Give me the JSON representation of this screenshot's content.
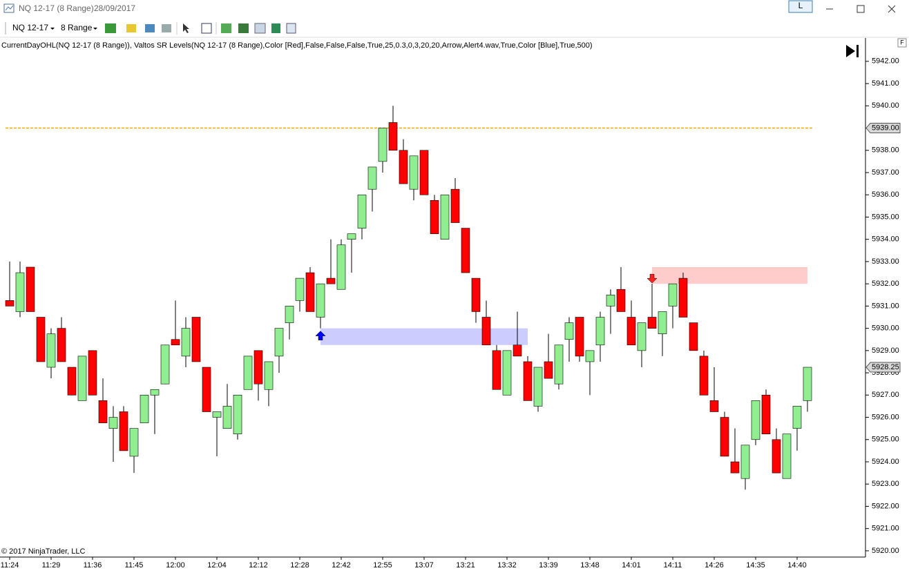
{
  "window": {
    "title": "NQ 12-17 (8 Range)",
    "date": "28/09/2017",
    "button": "L"
  },
  "toolbar": {
    "instrument": "NQ 12-17",
    "period": "8 Range"
  },
  "chart_data": {
    "type": "candlestick",
    "indicators": "CurrentDayOHL(NQ 12-17 (8 Range)), Valtos SR Levels(NQ 12-17 (8 Range),Color [Red],False,False,False,True,25,0.3,0,3,20,20,Arrow,Alert4.wav,True,Color [Blue],True,500)",
    "copyright": "© 2017 NinjaTrader, LLC",
    "axis_flag": "F",
    "up_color": "#90ee90",
    "down_color": "#ff0000",
    "categories": [
      "11:24",
      null,
      null,
      null,
      "11:29",
      null,
      null,
      null,
      "11:36",
      null,
      null,
      null,
      "11:45",
      null,
      null,
      null,
      "12:00",
      null,
      null,
      null,
      "12:04",
      null,
      null,
      null,
      "12:12",
      null,
      null,
      null,
      "12:28",
      null,
      null,
      null,
      "12:42",
      null,
      null,
      null,
      "12:55",
      null,
      null,
      null,
      "13:07",
      null,
      null,
      null,
      "13:21",
      null,
      null,
      null,
      "13:32",
      null,
      null,
      null,
      "13:39",
      null,
      null,
      null,
      "13:48",
      null,
      null,
      null,
      "14:01",
      null,
      null,
      null,
      "14:11",
      null,
      null,
      null,
      "14:26",
      null,
      null,
      null,
      "14:35",
      null,
      null,
      null,
      "14:40",
      null
    ],
    "open": [
      5931.25,
      5930.75,
      5932.75,
      5930.5,
      5928.25,
      5930,
      5928.25,
      5926.75,
      5929,
      5926.75,
      5925.5,
      5926.25,
      5924.25,
      5925.75,
      5927,
      5927.5,
      5929.5,
      5928.75,
      5930.5,
      5928.25,
      5926,
      5925.5,
      5925.25,
      5927.25,
      5929,
      5927.25,
      5928.75,
      5930.25,
      5931.25,
      5932.5,
      5930.5,
      5932.25,
      5931.75,
      5934,
      5934.5,
      5936.25,
      5937.5,
      5939.25,
      5938,
      5936.25,
      5938,
      5935.75,
      5934,
      5936.25,
      5934.5,
      5932.25,
      5930.5,
      5929,
      5927,
      5929.25,
      5928.5,
      5926.5,
      5928.5,
      5927.5,
      5929.5,
      5930.5,
      5928.5,
      5929.25,
      5931,
      5931.75,
      5930.5,
      5929,
      5930.5,
      5929.75,
      5931,
      5932.25,
      5930.25,
      5928.75,
      5926.75,
      5926,
      5924,
      5923.25,
      5925,
      5927,
      5925,
      5923.25,
      5925.5,
      5926.75
    ],
    "high": [
      5933,
      5933,
      5932.75,
      5930.5,
      5930,
      5930.5,
      5928.25,
      5928.75,
      5929,
      5927.75,
      5926.5,
      5926.5,
      5925.5,
      5927,
      5927.25,
      5929.25,
      5931.25,
      5930.5,
      5930.5,
      5928.25,
      5926.25,
      5927.5,
      5927,
      5928.75,
      5929,
      5928.5,
      5930,
      5931,
      5932.25,
      5932.75,
      5932,
      5934,
      5934,
      5934.25,
      5936,
      5937.25,
      5939,
      5940,
      5938.5,
      5937.75,
      5938,
      5936,
      5936,
      5936.75,
      5934.5,
      5932.25,
      5931.25,
      5929.25,
      5929,
      5930.75,
      5928.75,
      5928.25,
      5929.75,
      5929.25,
      5930.5,
      5930.5,
      5929,
      5930.75,
      5931.75,
      5932.75,
      5931.25,
      5930.25,
      5932,
      5930.75,
      5932,
      5932.5,
      5930.25,
      5929,
      5928.25,
      5926.25,
      5925.5,
      5924.75,
      5926.75,
      5927.25,
      5925.5,
      5925.25,
      5926.5,
      5928.25
    ],
    "low": [
      5931,
      5930.5,
      5930.75,
      5928.5,
      5927.75,
      5928.5,
      5927,
      5926.75,
      5927,
      5925.75,
      5924,
      5924.5,
      5923.5,
      5925.75,
      5925.25,
      5927.5,
      5929.25,
      5928.25,
      5928.5,
      5926.25,
      5924.25,
      5925.5,
      5925,
      5927.25,
      5926.75,
      5926.5,
      5928,
      5929.5,
      5930.75,
      5930.75,
      5930,
      5932,
      5931.75,
      5932.5,
      5934,
      5935.25,
      5937,
      5938,
      5936.5,
      5935.75,
      5936,
      5934.25,
      5934,
      5934.75,
      5932.5,
      5930.25,
      5929.25,
      5927.25,
      5927,
      5928.75,
      5926.75,
      5926.25,
      5927.75,
      5927.25,
      5928.5,
      5928.5,
      5927,
      5928.5,
      5929.75,
      5930.75,
      5929.25,
      5928.25,
      5930,
      5928.75,
      5930,
      5930.5,
      5929,
      5927,
      5926.25,
      5924.25,
      5923.5,
      5922.75,
      5924.75,
      5925.25,
      5923.5,
      5923.25,
      5924.5,
      5926.25
    ],
    "close": [
      5931,
      5932.5,
      5930.75,
      5928.5,
      5929.75,
      5928.5,
      5927,
      5928.75,
      5927,
      5925.75,
      5926,
      5924.5,
      5925.5,
      5927,
      5927.25,
      5929.25,
      5929.25,
      5930,
      5928.5,
      5926.25,
      5926.25,
      5926.5,
      5927,
      5928.75,
      5927.5,
      5928.5,
      5930,
      5931,
      5932.25,
      5930.75,
      5932,
      5932,
      5933.75,
      5934.25,
      5936,
      5937.25,
      5939,
      5938,
      5936.5,
      5937.75,
      5936,
      5934.25,
      5936,
      5934.75,
      5932.5,
      5930.75,
      5929.25,
      5927.25,
      5929,
      5928.75,
      5926.75,
      5928.25,
      5927.75,
      5929.25,
      5930.25,
      5928.75,
      5929,
      5930.5,
      5931.5,
      5930.75,
      5929.25,
      5930.25,
      5930,
      5930.75,
      5932,
      5930.5,
      5929,
      5927,
      5926.25,
      5924.25,
      5923.5,
      5924.75,
      5926.75,
      5925.25,
      5923.5,
      5925.25,
      5926.5,
      5928.25
    ],
    "ylim": [
      5919.75,
      5943.05
    ],
    "yticks": [
      {
        "value": 5920,
        "label": "5920.00"
      },
      {
        "value": 5921,
        "label": "5921.00"
      },
      {
        "value": 5922,
        "label": "5922.00"
      },
      {
        "value": 5923,
        "label": "5923.00"
      },
      {
        "value": 5924,
        "label": "5924.00"
      },
      {
        "value": 5925,
        "label": "5925.00"
      },
      {
        "value": 5926,
        "label": "5926.00"
      },
      {
        "value": 5927,
        "label": "5927.00"
      },
      {
        "value": 5928,
        "label": "5928.00"
      },
      {
        "value": 5929,
        "label": "5929.00"
      },
      {
        "value": 5930,
        "label": "5930.00"
      },
      {
        "value": 5931,
        "label": "5931.00"
      },
      {
        "value": 5932,
        "label": "5932.00"
      },
      {
        "value": 5933,
        "label": "5933.00"
      },
      {
        "value": 5934,
        "label": "5934.00"
      },
      {
        "value": 5935,
        "label": "5935.00"
      },
      {
        "value": 5936,
        "label": "5936.00"
      },
      {
        "value": 5937,
        "label": "5937.00"
      },
      {
        "value": 5938,
        "label": "5938.00"
      },
      {
        "value": 5939,
        "label": "5939.00"
      },
      {
        "value": 5940,
        "label": "5940.00"
      },
      {
        "value": 5941,
        "label": "5941.00"
      },
      {
        "value": 5942,
        "label": "5942.00"
      }
    ],
    "price_markers": [
      {
        "value": 5939,
        "label": "5939.00",
        "color": "#ffa500"
      },
      {
        "value": 5928.25,
        "label": "5928.25"
      }
    ],
    "zones": [
      {
        "start_bar": 30,
        "end_bar": 50,
        "low": 5929.25,
        "high": 5930,
        "color": "#ccccff"
      },
      {
        "start_bar": 62,
        "end_bar": 77,
        "low": 5932,
        "high": 5932.75,
        "color": "#ffcccc"
      }
    ],
    "signals": [
      {
        "bar": 30,
        "direction": "up",
        "color": "#0000ff"
      },
      {
        "bar": 62,
        "direction": "down",
        "color": "#ff2020"
      }
    ]
  }
}
